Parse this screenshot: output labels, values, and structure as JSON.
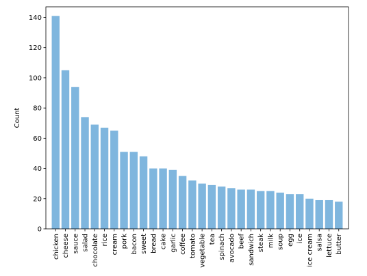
{
  "chart_data": {
    "type": "bar",
    "title": "",
    "xlabel": "",
    "ylabel": "Count",
    "ylim": [
      0,
      147
    ],
    "yticks": [
      0,
      20,
      40,
      60,
      80,
      100,
      120,
      140
    ],
    "grid": false,
    "bar_color": "#7fb6de",
    "categories": [
      "chicken",
      "cheese",
      "sauce",
      "salad",
      "chocolate",
      "rice",
      "cream",
      "pork",
      "bacon",
      "sweet",
      "bread",
      "cake",
      "garlic",
      "coffee",
      "tomato",
      "vegetable",
      "tea",
      "spinach",
      "avocado",
      "beef",
      "sandwich",
      "steak",
      "milk",
      "soup",
      "egg",
      "ice",
      "ice cream",
      "salsa",
      "lettuce",
      "butter"
    ],
    "values": [
      141,
      105,
      94,
      74,
      69,
      67,
      65,
      51,
      51,
      48,
      40,
      40,
      39,
      35,
      32,
      30,
      29,
      28,
      27,
      26,
      26,
      25,
      25,
      24,
      23,
      23,
      20,
      19,
      19,
      18
    ]
  }
}
